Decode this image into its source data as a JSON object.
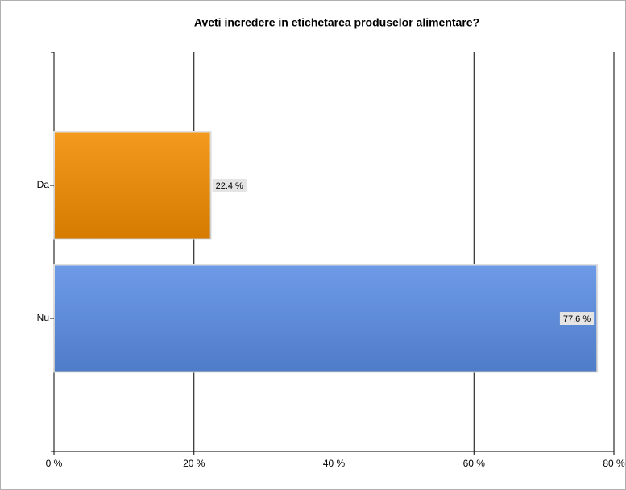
{
  "chart_data": {
    "type": "hbar",
    "title": "Aveti incredere in etichetarea produselor alimentare?",
    "categories": [
      "Da",
      "Nu"
    ],
    "values": [
      22.4,
      77.6
    ],
    "value_labels": [
      "22.4 %",
      "77.6 %"
    ],
    "colors": [
      "#f28c00",
      "#5a8de3"
    ],
    "xlim": [
      0,
      80
    ],
    "xticks": [
      {
        "value": 0,
        "label": "0 %"
      },
      {
        "value": 20,
        "label": "20 %"
      },
      {
        "value": 40,
        "label": "40 %"
      },
      {
        "value": 60,
        "label": "60 %"
      },
      {
        "value": 80,
        "label": "80 %"
      }
    ],
    "grid": true
  }
}
